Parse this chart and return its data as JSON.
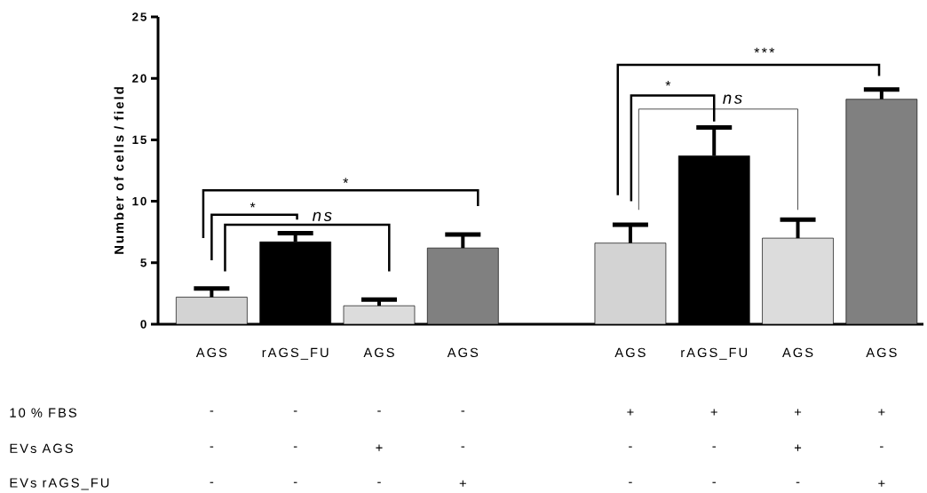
{
  "chart_data": {
    "type": "bar",
    "ylabel": "Number of cells / field",
    "categories": [
      "AGS",
      "rAGS_FU",
      "AGS",
      "AGS",
      null,
      "AGS",
      "rAGS_FU",
      "AGS",
      "AGS"
    ],
    "values": [
      2.2,
      6.7,
      1.5,
      6.2,
      null,
      6.6,
      13.7,
      7.0,
      18.3
    ],
    "errors": [
      0.7,
      0.7,
      0.5,
      1.1,
      null,
      1.5,
      2.3,
      1.5,
      0.8
    ],
    "colors": [
      "#d3d3d3",
      "#000000",
      "#dcdcdc",
      "#808080",
      null,
      "#d3d3d3",
      "#000000",
      "#dcdcdc",
      "#808080"
    ],
    "ylim": [
      0,
      25
    ],
    "yticks": [
      0,
      5,
      10,
      15,
      20,
      25
    ],
    "annotations": [
      "*",
      "*",
      "ns",
      "*",
      "ns",
      "***",
      "10 % FBS",
      "-",
      "-",
      "-",
      "-",
      "+",
      "+",
      "+",
      "+",
      "EVs AGS",
      "-",
      "-",
      "+",
      "-",
      "-",
      "-",
      "+",
      "-",
      "EVs rAGS_FU",
      "-",
      "-",
      "-",
      "+",
      "-",
      "-",
      "-",
      "+"
    ]
  }
}
